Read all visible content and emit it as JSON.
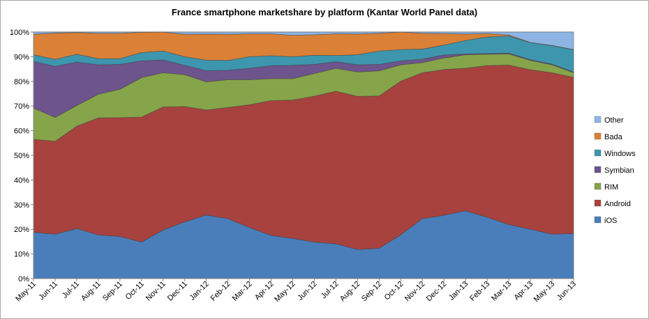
{
  "chart_data": {
    "type": "area",
    "stacked": true,
    "title": "France smartphone marketshare by platform (Kantar World Panel data)",
    "xlabel": "",
    "ylabel": "",
    "ylim": [
      0,
      100
    ],
    "y_ticks": [
      "0%",
      "10%",
      "20%",
      "30%",
      "40%",
      "50%",
      "60%",
      "70%",
      "80%",
      "90%",
      "100%"
    ],
    "grid": true,
    "legend_position": "right",
    "categories": [
      "May-11",
      "Jun-11",
      "Jul-11",
      "Aug-11",
      "Sep-11",
      "Oct-11",
      "Nov-11",
      "Dec-11",
      "Jan-12",
      "Feb-12",
      "Mar-12",
      "Apr-12",
      "May-12",
      "Jun-12",
      "Jul-12",
      "Aug-12",
      "Sep-12",
      "Oct-12",
      "Nov-12",
      "Dec-12",
      "Jan-13",
      "Feb-13",
      "Mar-13",
      "Apr-13",
      "May-13",
      "Jun-13"
    ],
    "series": [
      {
        "name": "iOS",
        "color": "#4a7ebb",
        "values": [
          18.8,
          18.0,
          20.3,
          17.7,
          17.1,
          14.8,
          19.7,
          23.0,
          25.8,
          24.3,
          20.7,
          17.5,
          16.3,
          14.8,
          14.1,
          11.8,
          12.3,
          17.8,
          24.3,
          25.7,
          27.5,
          24.9,
          21.9,
          20.0,
          18.0,
          18.3
        ]
      },
      {
        "name": "Android",
        "color": "#a8423f",
        "values": [
          37.7,
          37.7,
          41.5,
          47.5,
          48.2,
          50.7,
          49.9,
          46.8,
          42.6,
          45.1,
          49.8,
          54.7,
          56.1,
          59.2,
          61.9,
          62.1,
          61.8,
          62.3,
          59.2,
          59.1,
          57.8,
          61.5,
          64.7,
          64.7,
          65.5,
          63.3
        ]
      },
      {
        "name": "RIM",
        "color": "#86a44a",
        "values": [
          12.7,
          9.7,
          8.4,
          9.6,
          11.5,
          16.0,
          13.9,
          12.9,
          11.4,
          11.3,
          10.2,
          8.9,
          8.7,
          9.2,
          9.3,
          9.9,
          10.2,
          6.6,
          4.1,
          4.7,
          5.5,
          4.6,
          4.5,
          3.8,
          3.2,
          1.9
        ]
      },
      {
        "name": "Symbian",
        "color": "#6e548d",
        "values": [
          18.9,
          20.7,
          17.6,
          11.9,
          10.1,
          6.8,
          5.2,
          3.8,
          4.5,
          3.8,
          4.6,
          5.3,
          5.4,
          3.7,
          2.7,
          2.9,
          2.6,
          1.6,
          1.4,
          1.2,
          0.3,
          0.3,
          0.4,
          0.3,
          0.3,
          0.3
        ]
      },
      {
        "name": "Windows",
        "color": "#3d96ae",
        "values": [
          2.7,
          2.8,
          3.2,
          2.5,
          2.3,
          3.4,
          3.6,
          3.5,
          4.3,
          4.0,
          4.7,
          4.0,
          3.5,
          3.7,
          2.5,
          4.1,
          5.4,
          4.6,
          4.1,
          4.0,
          5.5,
          6.7,
          6.9,
          6.9,
          7.5,
          9.0
        ]
      },
      {
        "name": "Bada",
        "color": "#da8137",
        "values": [
          8.3,
          10.7,
          8.8,
          10.3,
          10.3,
          8.2,
          7.7,
          9.1,
          10.6,
          10.6,
          9.3,
          8.9,
          8.7,
          8.3,
          8.8,
          8.4,
          7.2,
          7.1,
          6.4,
          4.7,
          2.6,
          1.4,
          0.4,
          0.1,
          0.1,
          0.1
        ]
      },
      {
        "name": "Other",
        "color": "#8eb4e3",
        "values": [
          0.9,
          0.4,
          0.2,
          0.5,
          0.5,
          0.1,
          0.0,
          0.9,
          0.8,
          0.9,
          0.7,
          0.7,
          1.3,
          1.1,
          0.7,
          0.8,
          0.5,
          0.0,
          0.5,
          0.6,
          0.8,
          0.6,
          1.2,
          4.2,
          5.4,
          7.1
        ]
      }
    ]
  }
}
